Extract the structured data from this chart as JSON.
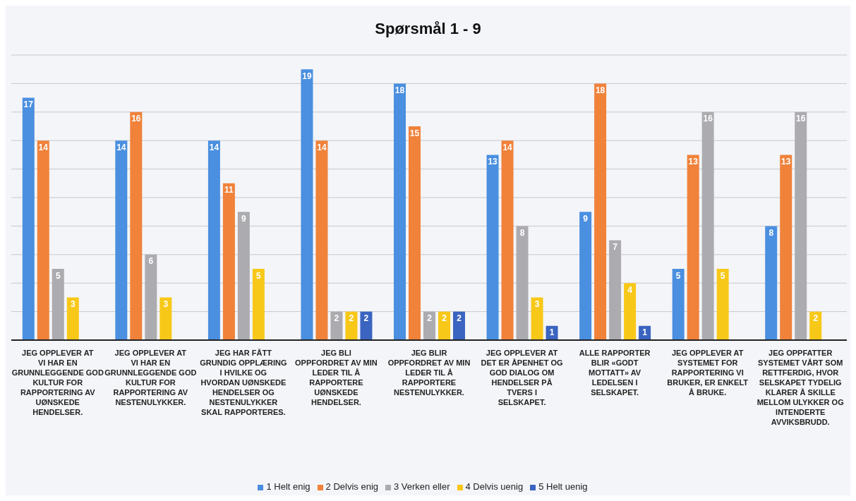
{
  "chart_data": {
    "type": "bar",
    "title": "Spørsmål 1 - 9",
    "categories": [
      "JEG OPPLEVER AT VI HAR EN GRUNNLEGGENDE GOD KULTUR FOR RAPPORTERING AV UØNSKEDE HENDELSER.",
      "JEG OPPLEVER AT VI HAR EN GRUNNLEGGENDE GOD KULTUR FOR RAPPORTERING AV NESTENULYKKER.",
      "JEG HAR FÅTT GRUNDIG OPPLÆRING I HVILKE OG HVORDAN UØNSKEDE HENDELSER OG NESTENULYKKER SKAL RAPPORTERES.",
      "JEG BLI OPPFORDRET AV MIN LEDER TIL Å RAPPORTERE UØNSKEDE HENDELSER.",
      "JEG BLIR OPPFORDRET AV MIN LEDER TIL Å RAPPORTERE NESTENULYKKER.",
      "JEG OPPLEVER AT DET ER ÅPENHET OG GOD DIALOG OM HENDELSER PÅ TVERS I SELSKAPET.",
      "ALLE RAPPORTER BLIR «GODT MOTTATT» AV LEDELSEN I SELSKAPET.",
      "JEG OPPLEVER AT SYSTEMET FOR RAPPORTERING VI BRUKER, ER ENKELT Å BRUKE.",
      "JEG OPPFATTER SYSTEMET VÅRT SOM RETTFERDIG, HVOR SELSKAPET TYDELIG KLARER Å SKILLE MELLOM ULYKKER OG INTENDERTE AVVIKSBRUDD."
    ],
    "series": [
      {
        "name": "1 Helt enig",
        "color": "#4a8fe0",
        "values": [
          17,
          14,
          14,
          19,
          18,
          13,
          9,
          5,
          8
        ]
      },
      {
        "name": "2 Delvis enig",
        "color": "#f0823a",
        "values": [
          14,
          16,
          11,
          14,
          15,
          14,
          18,
          13,
          13
        ]
      },
      {
        "name": "3 Verken eller",
        "color": "#acacb0",
        "values": [
          5,
          6,
          9,
          2,
          2,
          8,
          7,
          16,
          16
        ]
      },
      {
        "name": "4 Delvis uenig",
        "color": "#f8c818",
        "values": [
          3,
          3,
          5,
          2,
          2,
          3,
          4,
          5,
          2
        ]
      },
      {
        "name": "5 Helt uenig",
        "color": "#3a64c0",
        "values": [
          null,
          null,
          null,
          2,
          2,
          1,
          1,
          null,
          null
        ]
      }
    ],
    "ylim": [
      0,
      20
    ],
    "yticks": [
      {
        "value": 0,
        "label": null
      },
      {
        "value": 2,
        "label": null
      },
      {
        "value": 4,
        "label": null
      },
      {
        "value": 6,
        "label": null
      },
      {
        "value": 8,
        "label": null
      },
      {
        "value": 10,
        "label": null
      },
      {
        "value": 12,
        "label": null
      },
      {
        "value": 14,
        "label": null
      },
      {
        "value": 16,
        "label": null
      },
      {
        "value": 18,
        "label": null
      },
      {
        "value": 20,
        "label": null
      }
    ],
    "tick_labels": "x",
    "grid": "y",
    "legend": "bottom",
    "data_labels": true
  }
}
